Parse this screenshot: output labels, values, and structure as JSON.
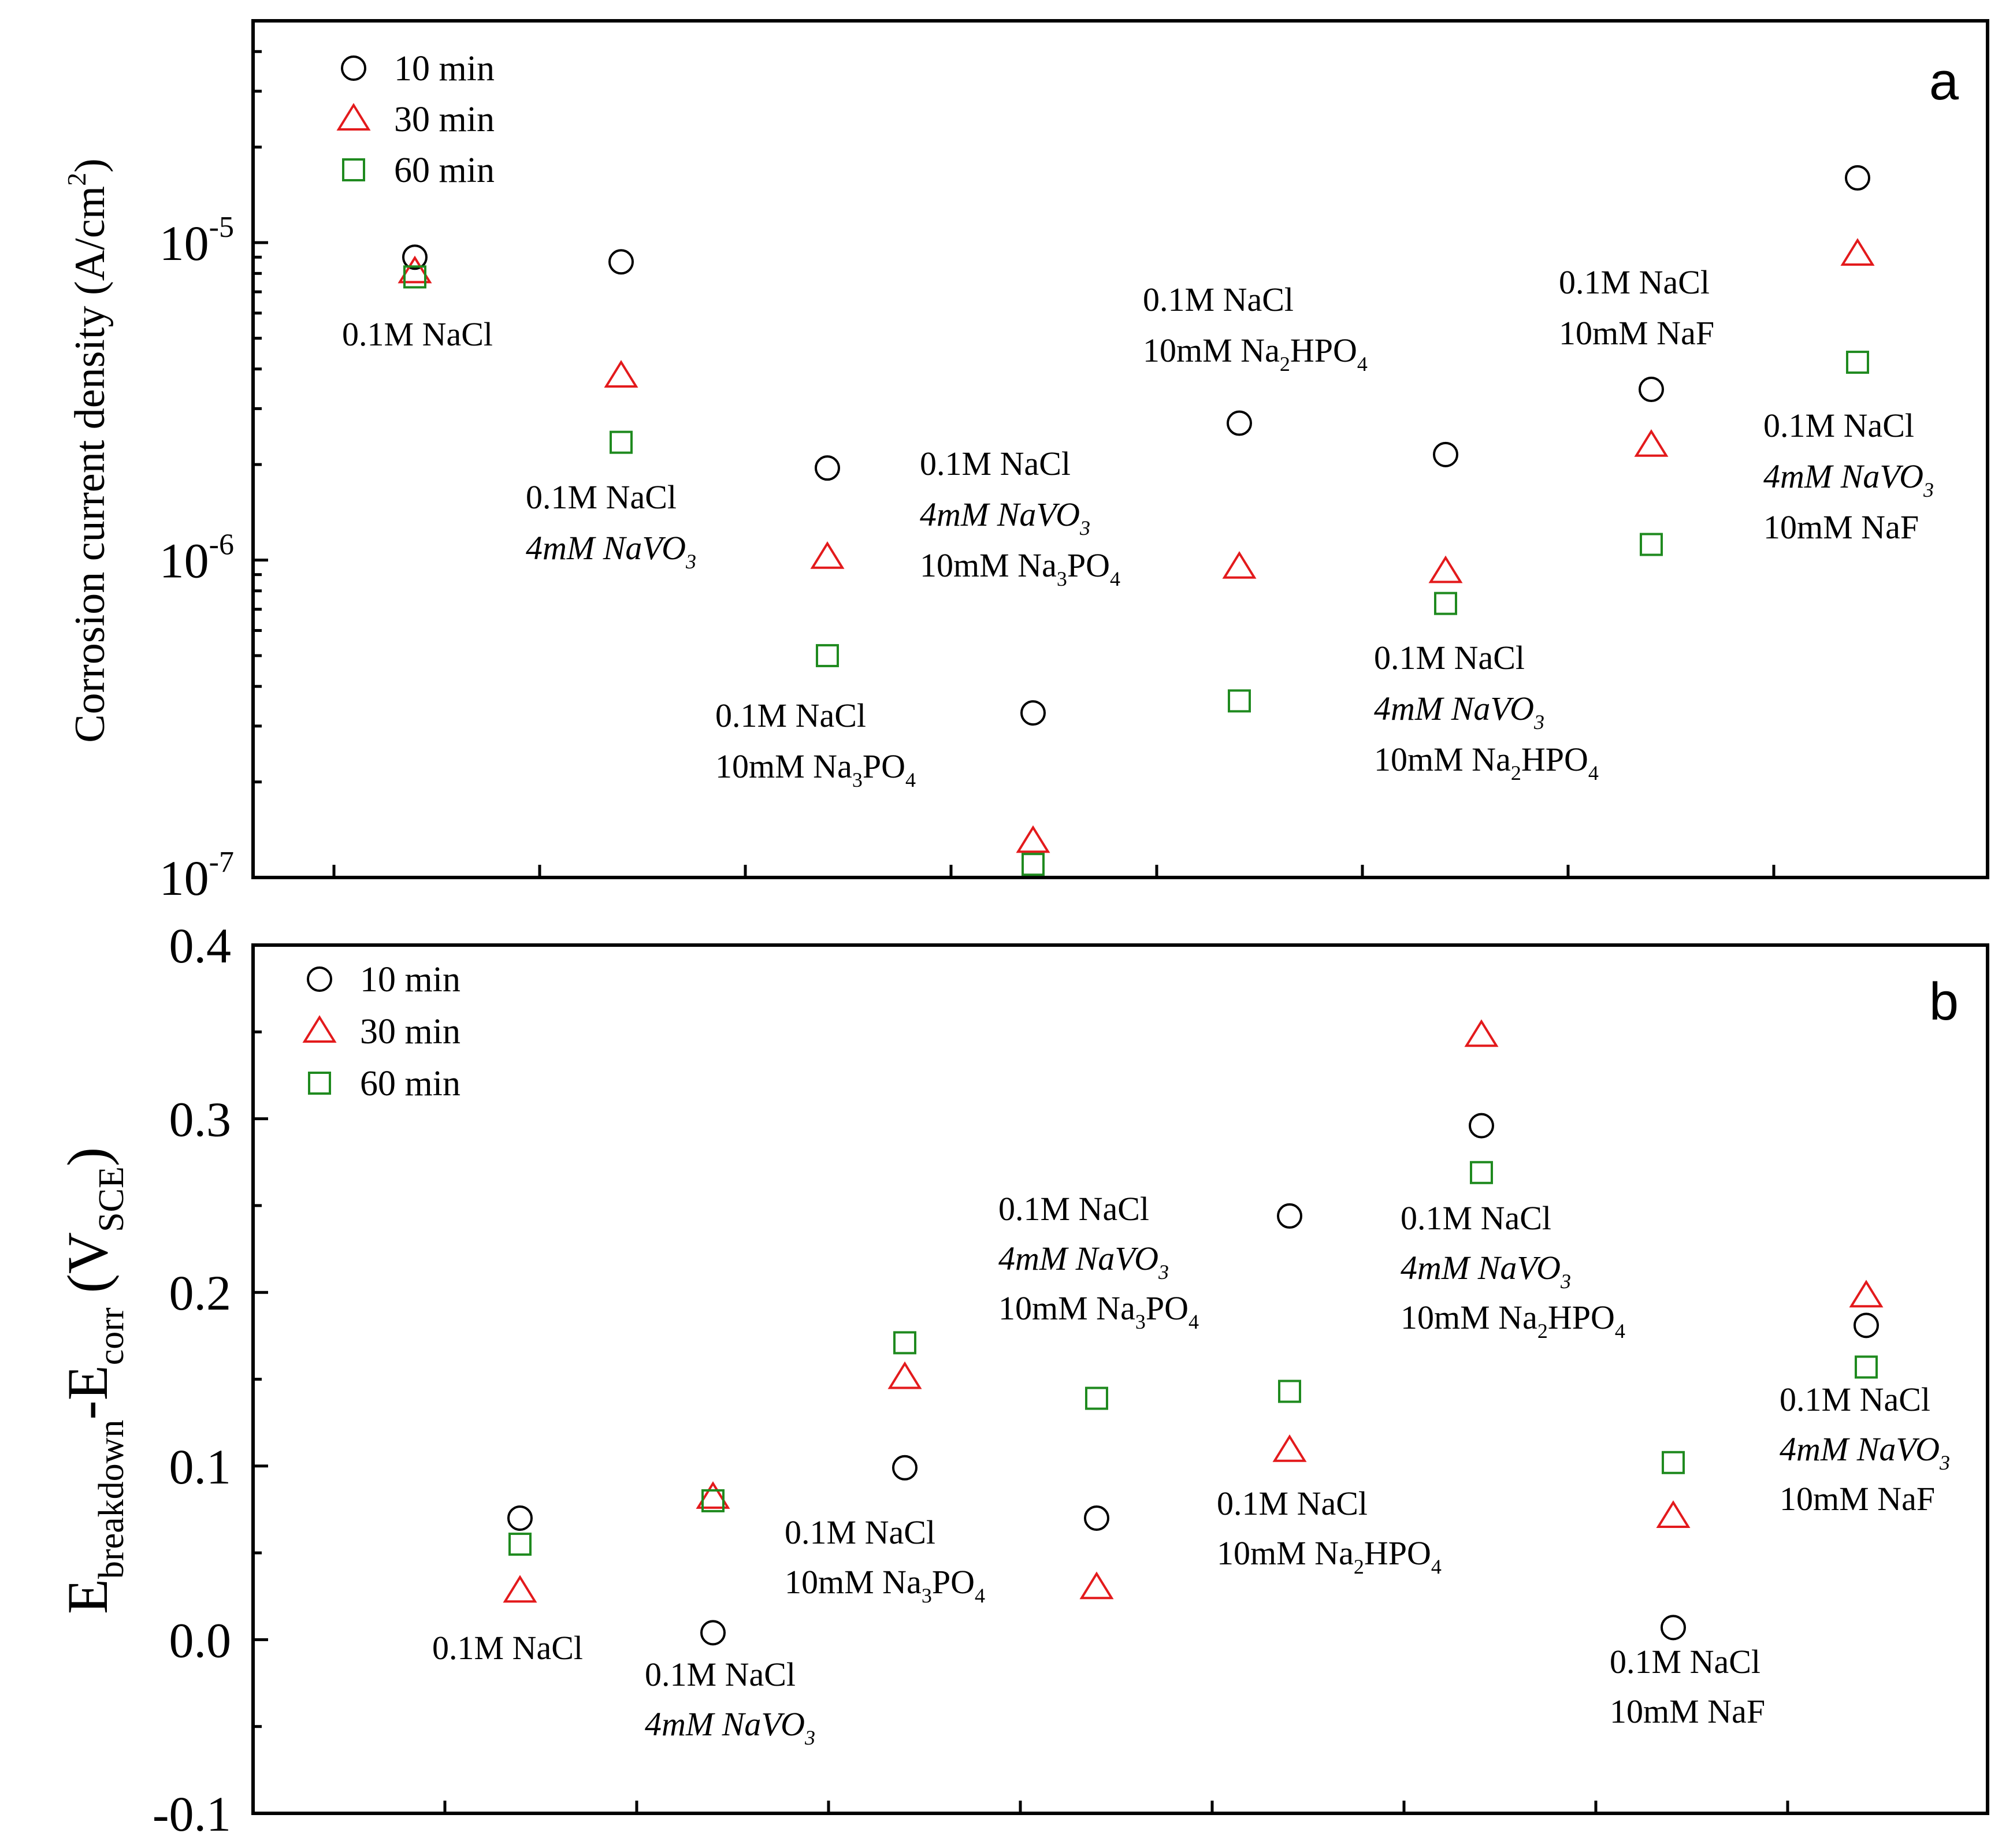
{
  "chart_data": [
    {
      "type": "scatter",
      "panel": "a",
      "ylabel_main": "Corrosion current density (A/cm",
      "ylabel_sup": "2",
      "ylabel_close": ")",
      "yscale": "log",
      "ylim": [
        1e-07,
        5e-05
      ],
      "yticks": [
        {
          "value": 1e-07,
          "base": "10",
          "exp": "-7"
        },
        {
          "value": 1e-06,
          "base": "10",
          "exp": "-6"
        },
        {
          "value": 1e-05,
          "base": "10",
          "exp": "-5"
        }
      ],
      "legend": [
        {
          "label": "10 min",
          "marker": "circle",
          "color": "#000000"
        },
        {
          "label": "30 min",
          "marker": "triangle",
          "color": "#e31a1c"
        },
        {
          "label": "60 min",
          "marker": "square",
          "color": "#1f8a1f"
        }
      ],
      "series": [
        {
          "name": "10 min",
          "values": [
            9e-06,
            8.7e-06,
            1.95e-06,
            3.3e-07,
            2.7e-06,
            2.15e-06,
            3.45e-06,
            1.6e-05
          ]
        },
        {
          "name": "30 min",
          "values": [
            8.1e-06,
            3.8e-06,
            1.02e-06,
            1.3e-07,
            9.5e-07,
            9.2e-07,
            2.3e-06,
            9.2e-06
          ]
        },
        {
          "name": "60 min",
          "values": [
            7.8e-06,
            2.35e-06,
            5e-07,
            1.1e-07,
            3.6e-07,
            7.3e-07,
            1.12e-06,
            4.2e-06
          ]
        }
      ],
      "annotations": [
        {
          "lines": [
            {
              "parts": [
                {
                  "t": "0.1M NaCl"
                }
              ]
            }
          ]
        },
        {
          "lines": [
            {
              "parts": [
                {
                  "t": "0.1M NaCl"
                }
              ]
            },
            {
              "parts": [
                {
                  "t": "4mM NaVO",
                  "i": true
                },
                {
                  "t": "3",
                  "sub": true,
                  "i": true
                }
              ]
            }
          ]
        },
        {
          "lines": [
            {
              "parts": [
                {
                  "t": "0.1M NaCl"
                }
              ]
            },
            {
              "parts": [
                {
                  "t": "10mM  Na"
                },
                {
                  "t": "3",
                  "sub": true
                },
                {
                  "t": "PO"
                },
                {
                  "t": "4",
                  "sub": true
                }
              ]
            }
          ]
        },
        {
          "lines": [
            {
              "parts": [
                {
                  "t": "0.1M NaCl"
                }
              ]
            },
            {
              "parts": [
                {
                  "t": "4mM NaVO",
                  "i": true
                },
                {
                  "t": "3",
                  "sub": true,
                  "i": true
                }
              ]
            },
            {
              "parts": [
                {
                  "t": "10mM  Na"
                },
                {
                  "t": "3",
                  "sub": true
                },
                {
                  "t": "PO"
                },
                {
                  "t": "4",
                  "sub": true
                }
              ]
            }
          ]
        },
        {
          "lines": [
            {
              "parts": [
                {
                  "t": "0.1M NaCl"
                }
              ]
            },
            {
              "parts": [
                {
                  "t": "10mM Na"
                },
                {
                  "t": "2",
                  "sub": true
                },
                {
                  "t": "HPO"
                },
                {
                  "t": "4",
                  "sub": true
                }
              ]
            }
          ]
        },
        {
          "lines": [
            {
              "parts": [
                {
                  "t": "0.1M NaCl"
                }
              ]
            },
            {
              "parts": [
                {
                  "t": "4mM NaVO",
                  "i": true
                },
                {
                  "t": "3",
                  "sub": true,
                  "i": true
                }
              ]
            },
            {
              "parts": [
                {
                  "t": "10mM Na"
                },
                {
                  "t": "2",
                  "sub": true
                },
                {
                  "t": "HPO"
                },
                {
                  "t": "4",
                  "sub": true
                }
              ]
            }
          ]
        },
        {
          "lines": [
            {
              "parts": [
                {
                  "t": "0.1M NaCl"
                }
              ]
            },
            {
              "parts": [
                {
                  "t": "10mM NaF"
                }
              ]
            }
          ]
        },
        {
          "lines": [
            {
              "parts": [
                {
                  "t": "0.1M NaCl"
                }
              ]
            },
            {
              "parts": [
                {
                  "t": "4mM NaVO",
                  "i": true
                },
                {
                  "t": "3",
                  "sub": true,
                  "i": true
                }
              ]
            },
            {
              "parts": [
                {
                  "t": "10mM NaF"
                }
              ]
            }
          ]
        }
      ]
    },
    {
      "type": "scatter",
      "panel": "b",
      "ylabel_parts": [
        {
          "t": "E"
        },
        {
          "t": "breakdown",
          "sub": true
        },
        {
          "t": "-E"
        },
        {
          "t": "corr",
          "sub": true
        },
        {
          "t": " (V"
        },
        {
          "t": "SCE",
          "sub": true
        },
        {
          "t": ")"
        }
      ],
      "yscale": "linear",
      "ylim": [
        -0.1,
        0.4
      ],
      "yticks": [
        "-0.1",
        "0.0",
        "0.1",
        "0.2",
        "0.3",
        "0.4"
      ],
      "legend": [
        {
          "label": "10 min",
          "marker": "circle",
          "color": "#000000"
        },
        {
          "label": "30 min",
          "marker": "triangle",
          "color": "#e31a1c"
        },
        {
          "label": "60 min",
          "marker": "square",
          "color": "#1f8a1f"
        }
      ],
      "series": [
        {
          "name": "10 min",
          "values": [
            0.07,
            0.004,
            0.099,
            0.07,
            0.244,
            0.296,
            0.007,
            0.181
          ]
        },
        {
          "name": "30 min",
          "values": [
            0.028,
            0.082,
            0.151,
            0.03,
            0.109,
            0.348,
            0.071,
            0.198
          ]
        },
        {
          "name": "60 min",
          "values": [
            0.055,
            0.08,
            0.171,
            0.139,
            0.143,
            0.269,
            0.102,
            0.157
          ]
        }
      ],
      "annotations": [
        {
          "lines": [
            {
              "parts": [
                {
                  "t": "0.1M NaCl"
                }
              ]
            }
          ]
        },
        {
          "lines": [
            {
              "parts": [
                {
                  "t": "0.1M NaCl"
                }
              ]
            },
            {
              "parts": [
                {
                  "t": "4mM NaVO",
                  "i": true
                },
                {
                  "t": "3",
                  "sub": true,
                  "i": true
                }
              ]
            }
          ]
        },
        {
          "lines": [
            {
              "parts": [
                {
                  "t": "0.1M NaCl"
                }
              ]
            },
            {
              "parts": [
                {
                  "t": "10mM  Na"
                },
                {
                  "t": "3",
                  "sub": true
                },
                {
                  "t": "PO"
                },
                {
                  "t": "4",
                  "sub": true
                }
              ]
            }
          ]
        },
        {
          "lines": [
            {
              "parts": [
                {
                  "t": "0.1M NaCl"
                }
              ]
            },
            {
              "parts": [
                {
                  "t": "4mM NaVO",
                  "i": true
                },
                {
                  "t": "3",
                  "sub": true,
                  "i": true
                }
              ]
            },
            {
              "parts": [
                {
                  "t": "10mM  Na"
                },
                {
                  "t": "3",
                  "sub": true
                },
                {
                  "t": "PO"
                },
                {
                  "t": "4",
                  "sub": true
                }
              ]
            }
          ]
        },
        {
          "lines": [
            {
              "parts": [
                {
                  "t": "0.1M NaCl"
                }
              ]
            },
            {
              "parts": [
                {
                  "t": "10mM Na"
                },
                {
                  "t": "2",
                  "sub": true
                },
                {
                  "t": "HPO"
                },
                {
                  "t": "4",
                  "sub": true
                }
              ]
            }
          ]
        },
        {
          "lines": [
            {
              "parts": [
                {
                  "t": "0.1M NaCl"
                }
              ]
            },
            {
              "parts": [
                {
                  "t": "4mM NaVO",
                  "i": true
                },
                {
                  "t": "3",
                  "sub": true,
                  "i": true
                }
              ]
            },
            {
              "parts": [
                {
                  "t": "10mM Na"
                },
                {
                  "t": "2",
                  "sub": true
                },
                {
                  "t": "HPO"
                },
                {
                  "t": "4",
                  "sub": true
                }
              ]
            }
          ]
        },
        {
          "lines": [
            {
              "parts": [
                {
                  "t": "0.1M NaCl"
                }
              ]
            },
            {
              "parts": [
                {
                  "t": "10mM NaF"
                }
              ]
            }
          ]
        },
        {
          "lines": [
            {
              "parts": [
                {
                  "t": "0.1M NaCl"
                }
              ]
            },
            {
              "parts": [
                {
                  "t": "4mM NaVO",
                  "i": true
                },
                {
                  "t": "3",
                  "sub": true,
                  "i": true
                }
              ]
            },
            {
              "parts": [
                {
                  "t": "10mM NaF"
                }
              ]
            }
          ]
        }
      ]
    }
  ]
}
